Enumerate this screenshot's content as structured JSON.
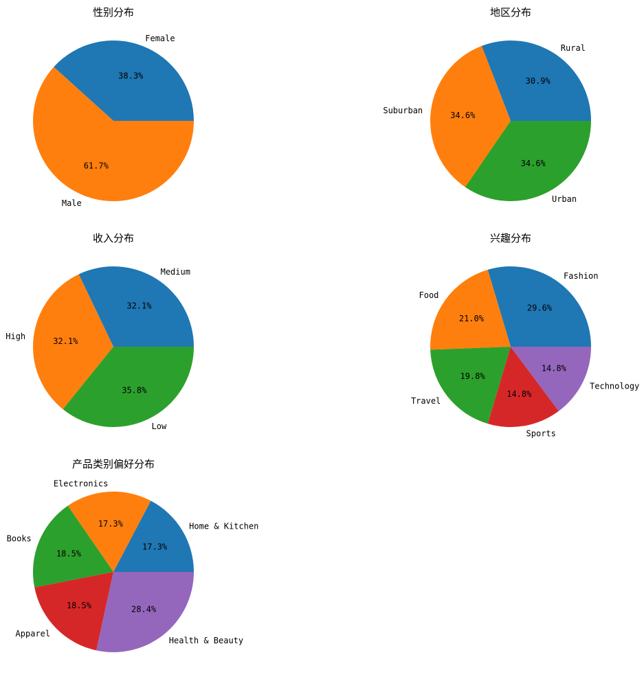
{
  "chart_data": [
    {
      "type": "pie",
      "title": "性别分布",
      "categories": [
        "Female",
        "Male"
      ],
      "values": [
        38.3,
        61.7
      ],
      "pct_labels": [
        "38.3%",
        "61.7%"
      ],
      "colors": [
        "#1f77b4",
        "#ff7f0e"
      ],
      "start_angle": 0,
      "direction": "counterclockwise"
    },
    {
      "type": "pie",
      "title": "地区分布",
      "categories": [
        "Rural",
        "Suburban",
        "Urban"
      ],
      "values": [
        30.9,
        34.6,
        34.6
      ],
      "pct_labels": [
        "30.9%",
        "34.6%",
        "34.6%"
      ],
      "colors": [
        "#1f77b4",
        "#ff7f0e",
        "#2ca02c"
      ],
      "start_angle": 0,
      "direction": "counterclockwise"
    },
    {
      "type": "pie",
      "title": "收入分布",
      "categories": [
        "Medium",
        "High",
        "Low"
      ],
      "values": [
        32.1,
        32.1,
        35.8
      ],
      "pct_labels": [
        "32.1%",
        "32.1%",
        "35.8%"
      ],
      "colors": [
        "#1f77b4",
        "#ff7f0e",
        "#2ca02c"
      ],
      "start_angle": 0,
      "direction": "counterclockwise"
    },
    {
      "type": "pie",
      "title": "兴趣分布",
      "categories": [
        "Fashion",
        "Food",
        "Travel",
        "Sports",
        "Technology"
      ],
      "values": [
        29.6,
        21.0,
        19.8,
        14.8,
        14.8
      ],
      "pct_labels": [
        "29.6%",
        "21.0%",
        "19.8%",
        "14.8%",
        "14.8%"
      ],
      "colors": [
        "#1f77b4",
        "#ff7f0e",
        "#2ca02c",
        "#d62728",
        "#9467bd"
      ],
      "start_angle": 0,
      "direction": "counterclockwise"
    },
    {
      "type": "pie",
      "title": "产品类别偏好分布",
      "categories": [
        "Home & Kitchen",
        "Electronics",
        "Books",
        "Apparel",
        "Health & Beauty"
      ],
      "values": [
        17.3,
        17.3,
        18.5,
        18.5,
        28.4
      ],
      "pct_labels": [
        "17.3%",
        "17.3%",
        "18.5%",
        "18.5%",
        "28.4%"
      ],
      "colors": [
        "#1f77b4",
        "#ff7f0e",
        "#2ca02c",
        "#d62728",
        "#9467bd"
      ],
      "start_angle": 0,
      "direction": "counterclockwise"
    }
  ]
}
